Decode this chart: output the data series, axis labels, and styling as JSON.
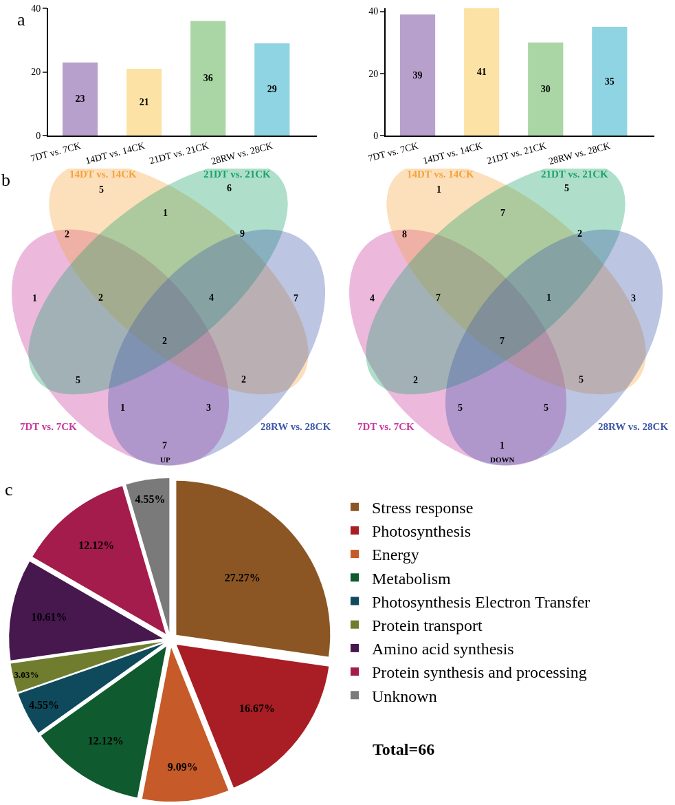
{
  "chart_data": [
    {
      "type": "bar",
      "title": "a",
      "categories": [
        "7DT vs. 7CK",
        "14DT vs. 14CK",
        "21DT vs. 21CK",
        "28RW vs. 28CK"
      ],
      "values": [
        23,
        21,
        36,
        29
      ],
      "colors": [
        "#b8a0cc",
        "#fde2a6",
        "#a9d6a4",
        "#8fd4e2"
      ],
      "ylim": [
        0,
        40
      ],
      "yticks": [
        0,
        20,
        40
      ],
      "data_labels": true
    },
    {
      "type": "bar",
      "categories": [
        "7DT vs. 7CK",
        "14DT vs. 14CK",
        "21DT vs. 21CK",
        "28RW vs. 28CK"
      ],
      "values": [
        39,
        41,
        30,
        35
      ],
      "colors": [
        "#b8a0cc",
        "#fde2a6",
        "#a9d6a4",
        "#8fd4e2"
      ],
      "ylim": [
        0,
        41
      ],
      "yticks": [
        0,
        20,
        40
      ],
      "data_labels": true
    },
    {
      "type": "other",
      "title": "b",
      "xlabel": "UP",
      "series": [
        {
          "name": "7DT vs. 7CK",
          "color": "#c8379e"
        },
        {
          "name": "14DT vs. 14CK",
          "color": "#f5a23c"
        },
        {
          "name": "21DT vs. 21CK",
          "color": "#1aa36a"
        },
        {
          "name": "28RW vs. 28CK",
          "color": "#3f58a8"
        }
      ],
      "annotations": [
        "5",
        "6",
        "1",
        "2",
        "9",
        "1",
        "7",
        "2",
        "4",
        "2",
        "5",
        "2",
        "1",
        "3",
        "7"
      ]
    },
    {
      "type": "other",
      "xlabel": "DOWN",
      "series": [
        {
          "name": "7DT vs. 7CK",
          "color": "#c8379e"
        },
        {
          "name": "14DT vs. 14CK",
          "color": "#f5a23c"
        },
        {
          "name": "21DT vs. 21CK",
          "color": "#1aa36a"
        },
        {
          "name": "28RW vs. 28CK",
          "color": "#3f58a8"
        }
      ],
      "annotations": [
        "1",
        "5",
        "7",
        "8",
        "2",
        "4",
        "3",
        "7",
        "1",
        "7",
        "2",
        "5",
        "5",
        "5",
        "1"
      ]
    },
    {
      "type": "pie",
      "title": "c",
      "categories": [
        "Stress response",
        "Photosynthesis",
        "Energy",
        "Metabolism",
        "Photosynthesis Electron Transfer",
        "Protein transport",
        "Amino acid synthesis",
        "Protein synthesis and processing",
        "Unknown"
      ],
      "values": [
        27.27,
        16.67,
        9.09,
        12.12,
        4.55,
        3.03,
        10.61,
        12.12,
        4.55
      ],
      "value_labels": [
        "27.27%",
        "16.67%",
        "9.09%",
        "12.12%",
        "4.55%",
        "3.03%",
        "10.61%",
        "12.12%",
        "4.55%"
      ],
      "colors": [
        "#8b5624",
        "#a81e24",
        "#c65a28",
        "#0f5a2e",
        "#0e4a5c",
        "#707c2e",
        "#46184e",
        "#a31c4c",
        "#7a7a7a"
      ],
      "legend": "right",
      "annotations": [
        "Total=66"
      ]
    }
  ]
}
